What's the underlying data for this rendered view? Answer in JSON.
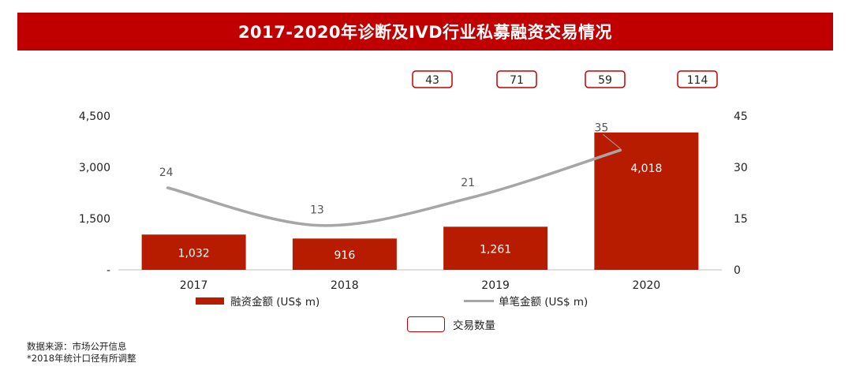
{
  "header": {
    "title": "2017-2020年诊断及IVD行业私募融资交易情况"
  },
  "chart_data": {
    "type": "bar",
    "categories": [
      "2017",
      "2018",
      "2019",
      "2020"
    ],
    "series": [
      {
        "name": "融资金额 (US$ m)",
        "kind": "bar",
        "axis": "left",
        "color": "#b71c00",
        "values": [
          1032,
          916,
          1261,
          4018
        ],
        "labels": [
          "1,032",
          "916",
          "1,261",
          "4,018"
        ]
      },
      {
        "name": "单笔金额 (US$ m)",
        "kind": "line",
        "axis": "right",
        "color": "#a6a6a6",
        "values": [
          24,
          13,
          21,
          35
        ],
        "labels": [
          "24",
          "13",
          "21",
          "35"
        ]
      },
      {
        "name": "交易数量",
        "kind": "box-label",
        "color": "#c00000",
        "values": [
          43,
          71,
          59,
          114
        ],
        "labels": [
          "43",
          "71",
          "59",
          "114"
        ]
      }
    ],
    "y_left": {
      "range": [
        0,
        4500
      ],
      "ticks": [
        0,
        1500,
        3000,
        4500
      ],
      "tick_labels": [
        "-",
        "1,500",
        "3,000",
        "4,500"
      ]
    },
    "y_right": {
      "range": [
        0,
        45
      ],
      "ticks": [
        0,
        15,
        30,
        45
      ],
      "tick_labels": [
        "0",
        "15",
        "30",
        "45"
      ]
    },
    "grid": false,
    "legend_position": "bottom"
  },
  "footnotes": [
    "数据来源：市场公开信息",
    "*2018年统计口径有所调整"
  ]
}
